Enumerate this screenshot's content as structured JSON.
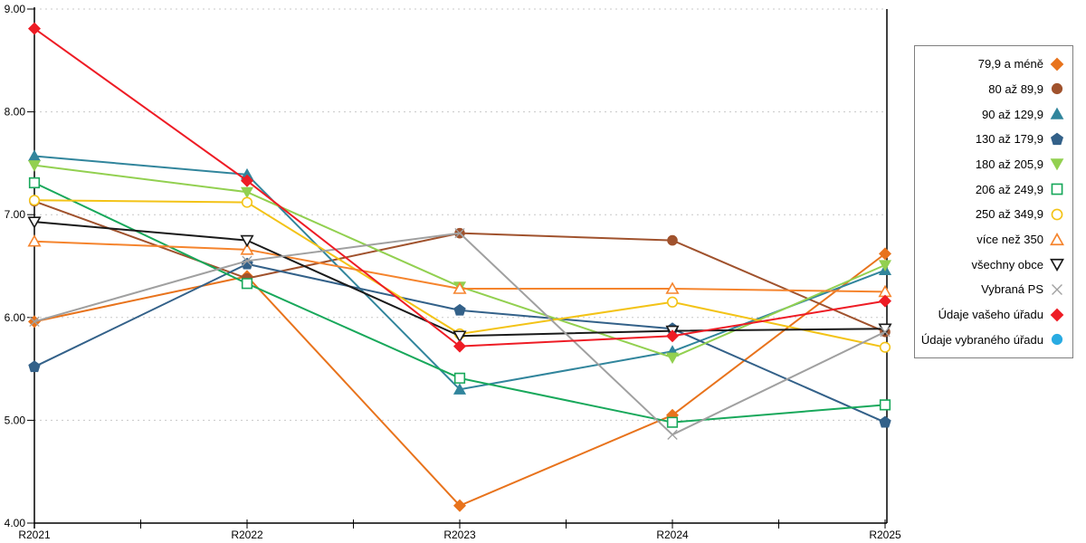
{
  "chart_data": {
    "type": "line",
    "title": "",
    "xlabel": "",
    "ylabel": "",
    "x_labels": [
      "R2021",
      "R2022",
      "R2023",
      "R2024",
      "R2025"
    ],
    "y_tick_labels": [
      "9.00",
      "8.00",
      "7.00",
      "6.00",
      "5.00",
      "4.00"
    ],
    "ylim": [
      4,
      9
    ],
    "grid": "horizontal-dotted",
    "legend_position": "right",
    "axis_color": "#000000",
    "grid_color": "#c8c8c8",
    "legend_border_color": "#7f7f7f",
    "series": [
      {
        "name": "79,9 a méně",
        "color": "#e8731c",
        "marker": "diamond",
        "style": "solid",
        "values": [
          5.96,
          6.4,
          4.17,
          5.05,
          6.62
        ]
      },
      {
        "name": "80 až 89,9",
        "color": "#a0522d",
        "marker": "circle",
        "style": "solid",
        "values": [
          7.13,
          6.38,
          6.82,
          6.75,
          5.86
        ]
      },
      {
        "name": "90 až 129,9",
        "color": "#31859c",
        "marker": "triangle-up",
        "style": "solid",
        "values": [
          7.57,
          7.39,
          5.3,
          5.67,
          6.46
        ]
      },
      {
        "name": "130 až 179,9",
        "color": "#336189",
        "marker": "pentagon",
        "style": "solid",
        "values": [
          5.52,
          6.52,
          6.07,
          5.89,
          4.98
        ]
      },
      {
        "name": "180 až 205,9",
        "color": "#92d050",
        "marker": "triangle-down",
        "style": "solid",
        "values": [
          7.48,
          7.22,
          6.3,
          5.61,
          6.51
        ]
      },
      {
        "name": "206 až 249,9",
        "color": "#18a85b",
        "marker": "square",
        "style": "hollow",
        "values": [
          7.31,
          6.33,
          5.41,
          4.98,
          5.15
        ]
      },
      {
        "name": "250 až 349,9",
        "color": "#f3c317",
        "marker": "circle",
        "style": "hollow",
        "values": [
          7.14,
          7.12,
          5.84,
          6.15,
          5.71
        ]
      },
      {
        "name": "více než 350",
        "color": "#f5842d",
        "marker": "triangle-up",
        "style": "hollow",
        "values": [
          6.74,
          6.66,
          6.28,
          6.28,
          6.25
        ]
      },
      {
        "name": "všechny obce",
        "color": "#1a1a1a",
        "marker": "triangle-down",
        "style": "hollow",
        "values": [
          6.93,
          6.75,
          5.82,
          5.87,
          5.89
        ]
      },
      {
        "name": "Vybraná PS",
        "color": "#a0a0a0",
        "marker": "x",
        "style": "line",
        "values": [
          5.96,
          6.55,
          6.82,
          4.86,
          5.86
        ]
      },
      {
        "name": "Údaje vašeho úřadu",
        "color": "#ee1c25",
        "marker": "diamond",
        "style": "solid",
        "values": [
          8.81,
          7.33,
          5.72,
          5.82,
          6.16
        ]
      },
      {
        "name": "Údaje vybraného úřadu",
        "color": "#29abe2",
        "marker": "circle",
        "style": "solid",
        "values": []
      }
    ]
  }
}
